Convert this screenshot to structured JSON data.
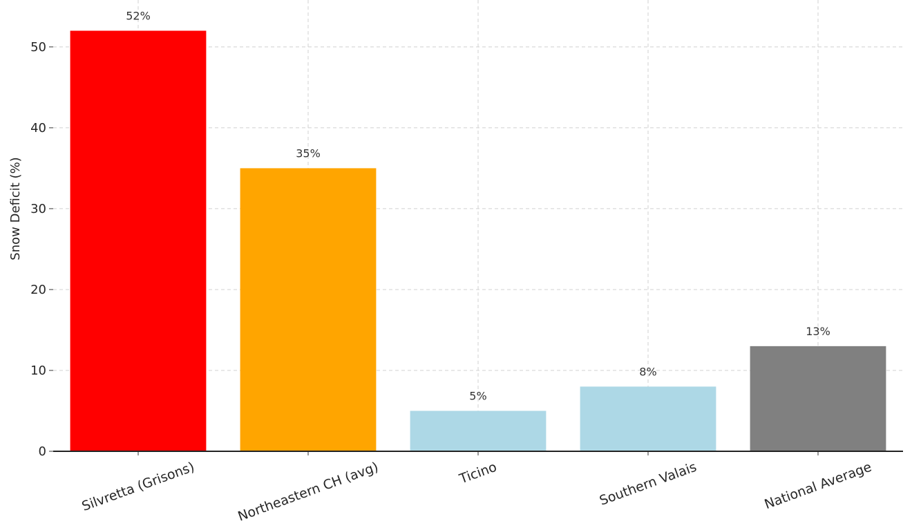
{
  "chart_data": {
    "type": "bar",
    "y_label": "Snow Deficit (%)",
    "categories": [
      "Silvretta (Grisons)",
      "Northeastern CH (avg)",
      "Ticino",
      "Southern Valais",
      "National Average"
    ],
    "values": [
      52,
      35,
      5,
      8,
      13
    ],
    "value_labels": [
      "52%",
      "35%",
      "5%",
      "8%",
      "13%"
    ],
    "colors": [
      "#ff0000",
      "#ffa500",
      "#add8e6",
      "#add8e6",
      "#808080"
    ],
    "ylim": [
      0,
      55.8
    ],
    "yticks": [
      0,
      10,
      20,
      30,
      40,
      50
    ],
    "grid": true
  }
}
